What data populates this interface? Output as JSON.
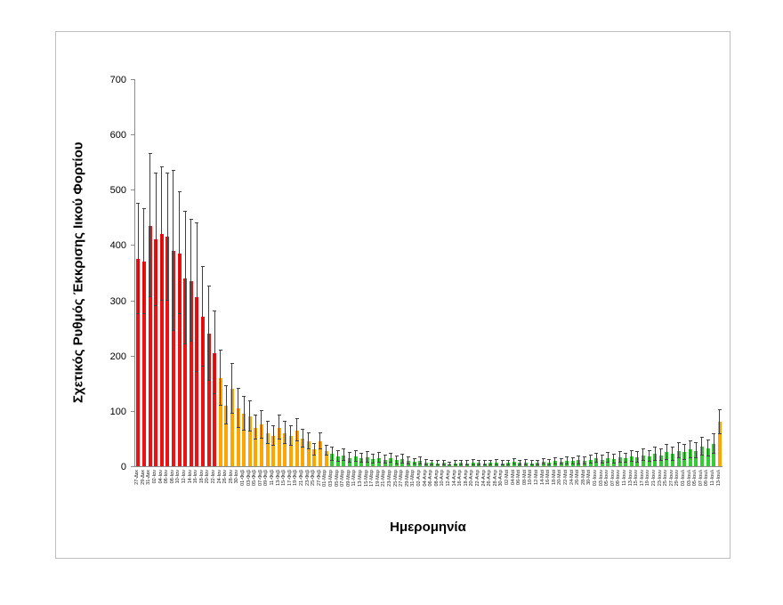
{
  "chart_data": {
    "type": "bar",
    "title": "",
    "xlabel": "Ημερομηνία",
    "ylabel": "Σχετικός Ρυθμός Έκκρισης Ιικού Φορτίου",
    "ylim": [
      0,
      700
    ],
    "y_ticks": [
      0,
      100,
      200,
      300,
      400,
      500,
      600,
      700
    ],
    "grid": false,
    "legend": false,
    "error_bars": true,
    "palette": {
      "red": "#ee1111",
      "orange": "#ffa500",
      "green": "#33cc33",
      "error": "#404040"
    },
    "color_segments": [
      {
        "start": 0,
        "end": 13,
        "color_key": "red"
      },
      {
        "start": 14,
        "end": 32,
        "color_key": "orange"
      },
      {
        "start": 33,
        "end": 98,
        "color_key": "green"
      },
      {
        "start": 99,
        "end": 99,
        "color_key": "orange"
      }
    ],
    "categories": [
      "27-Δεκ",
      "29-Δεκ",
      "31-Δεκ",
      "02-Ιαν",
      "04-Ιαν",
      "06-Ιαν",
      "08-Ιαν",
      "10-Ιαν",
      "12-Ιαν",
      "14-Ιαν",
      "16-Ιαν",
      "18-Ιαν",
      "20-Ιαν",
      "22-Ιαν",
      "24-Ιαν",
      "26-Ιαν",
      "28-Ιαν",
      "30-Ιαν",
      "01-Φεβ",
      "03-Φεβ",
      "05-Φεβ",
      "07-Φεβ",
      "09-Φεβ",
      "11-Φεβ",
      "13-Φεβ",
      "15-Φεβ",
      "17-Φεβ",
      "19-Φεβ",
      "21-Φεβ",
      "23-Φεβ",
      "25-Φεβ",
      "27-Φεβ",
      "01-Μαρ",
      "03-Μαρ",
      "05-Μαρ",
      "07-Μαρ",
      "09-Μαρ",
      "11-Μαρ",
      "13-Μαρ",
      "15-Μαρ",
      "17-Μαρ",
      "19-Μαρ",
      "21-Μαρ",
      "23-Μαρ",
      "25-Μαρ",
      "27-Μαρ",
      "29-Μαρ",
      "31-Μαρ",
      "02-Απρ",
      "04-Απρ",
      "06-Απρ",
      "08-Απρ",
      "10-Απρ",
      "12-Απρ",
      "14-Απρ",
      "16-Απρ",
      "18-Απρ",
      "20-Απρ",
      "22-Απρ",
      "24-Απρ",
      "26-Απρ",
      "28-Απρ",
      "30-Απρ",
      "02-Μαϊ",
      "04-Μαϊ",
      "06-Μαϊ",
      "08-Μαϊ",
      "10-Μαϊ",
      "12-Μαϊ",
      "14-Μαϊ",
      "16-Μαϊ",
      "18-Μαϊ",
      "20-Μαϊ",
      "22-Μαϊ",
      "24-Μαϊ",
      "26-Μαϊ",
      "28-Μαϊ",
      "30-Μαϊ",
      "01-Ιουν",
      "03-Ιουν",
      "05-Ιουν",
      "07-Ιουν",
      "09-Ιουν",
      "11-Ιουν",
      "13-Ιουν",
      "15-Ιουν",
      "17-Ιουν",
      "19-Ιουν",
      "21-Ιουν",
      "23-Ιουν",
      "25-Ιουν",
      "27-Ιουν",
      "29-Ιουν",
      "01-Ιουλ",
      "03-Ιουλ",
      "05-Ιουλ",
      "07-Ιουλ",
      "09-Ιουλ",
      "11-Ιουλ",
      "13-Ιουλ"
    ],
    "values": [
      375,
      370,
      435,
      410,
      420,
      415,
      390,
      385,
      340,
      335,
      305,
      270,
      240,
      205,
      160,
      110,
      140,
      105,
      95,
      90,
      70,
      75,
      60,
      55,
      70,
      60,
      55,
      65,
      50,
      45,
      30,
      45,
      28,
      22,
      18,
      20,
      15,
      18,
      14,
      16,
      13,
      15,
      12,
      14,
      11,
      13,
      10,
      8,
      10,
      7,
      6,
      5,
      6,
      4,
      5,
      6,
      5,
      7,
      6,
      5,
      6,
      7,
      5,
      6,
      8,
      6,
      7,
      5,
      6,
      8,
      7,
      9,
      8,
      10,
      9,
      11,
      10,
      12,
      14,
      12,
      15,
      13,
      16,
      14,
      18,
      16,
      20,
      18,
      22,
      20,
      25,
      22,
      28,
      25,
      30,
      28,
      35,
      32,
      40,
      80
    ],
    "errors": [
      100,
      95,
      130,
      120,
      120,
      115,
      145,
      110,
      120,
      110,
      135,
      90,
      85,
      75,
      50,
      35,
      45,
      35,
      30,
      28,
      22,
      25,
      20,
      18,
      22,
      20,
      18,
      20,
      16,
      15,
      10,
      15,
      9,
      12,
      10,
      11,
      9,
      10,
      8,
      9,
      8,
      9,
      7,
      8,
      7,
      8,
      6,
      5,
      6,
      5,
      4,
      4,
      4,
      3,
      4,
      4,
      4,
      5,
      4,
      4,
      4,
      5,
      4,
      4,
      5,
      4,
      5,
      4,
      4,
      5,
      5,
      6,
      5,
      6,
      6,
      7,
      6,
      7,
      8,
      7,
      9,
      8,
      9,
      8,
      10,
      9,
      11,
      10,
      12,
      11,
      13,
      12,
      14,
      13,
      15,
      14,
      16,
      15,
      18,
      22
    ]
  }
}
